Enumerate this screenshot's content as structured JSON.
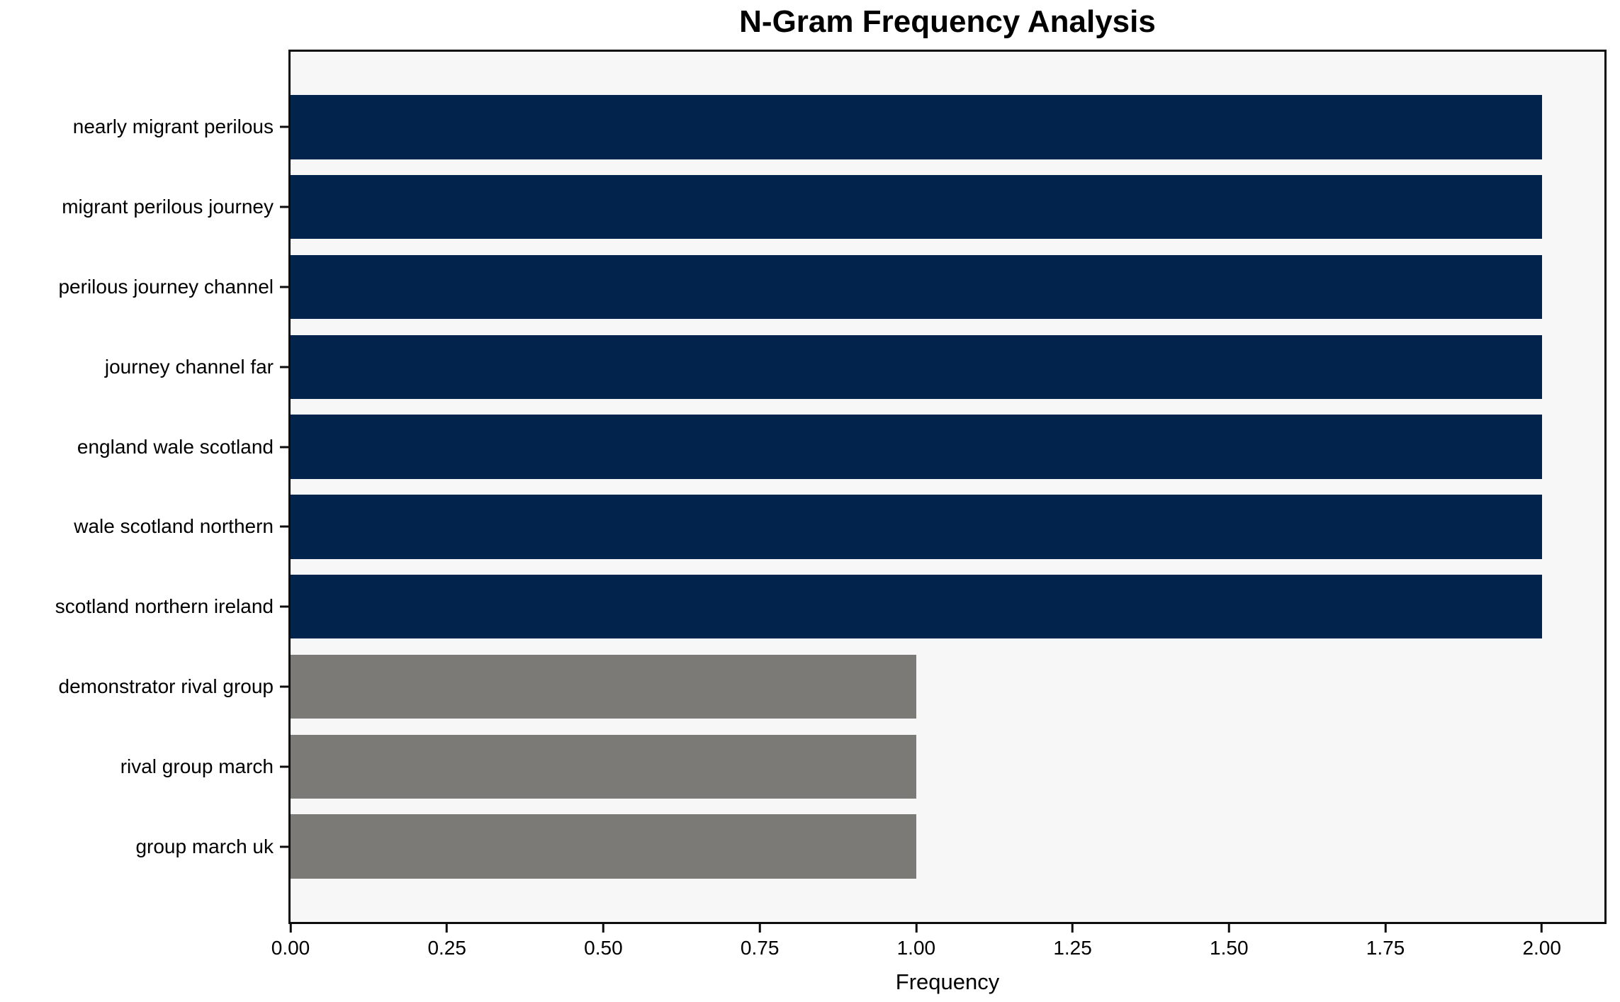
{
  "chart_data": {
    "type": "bar",
    "orientation": "horizontal",
    "title": "N-Gram Frequency Analysis",
    "xlabel": "Frequency",
    "ylabel": "",
    "categories": [
      "nearly migrant perilous",
      "migrant perilous journey",
      "perilous journey channel",
      "journey channel far",
      "england wale scotland",
      "wale scotland northern",
      "scotland northern ireland",
      "demonstrator rival group",
      "rival group march",
      "group march uk"
    ],
    "values": [
      2,
      2,
      2,
      2,
      2,
      2,
      2,
      1,
      1,
      1
    ],
    "bar_colors": [
      "#02234c",
      "#02234c",
      "#02234c",
      "#02234c",
      "#02234c",
      "#02234c",
      "#02234c",
      "#7b7a77",
      "#7b7a77",
      "#7b7a77"
    ],
    "xlim": [
      0,
      2.1
    ],
    "xtick_values": [
      0,
      0.25,
      0.5,
      0.75,
      1.0,
      1.25,
      1.5,
      1.75,
      2.0
    ],
    "xtick_labels": [
      "0.00",
      "0.25",
      "0.50",
      "0.75",
      "1.00",
      "1.25",
      "1.50",
      "1.75",
      "2.00"
    ],
    "grid": false,
    "legend": null,
    "plot_background": "#f7f7f7",
    "figure_background": "#ffffff",
    "spine_color": "#0d0d0d"
  }
}
